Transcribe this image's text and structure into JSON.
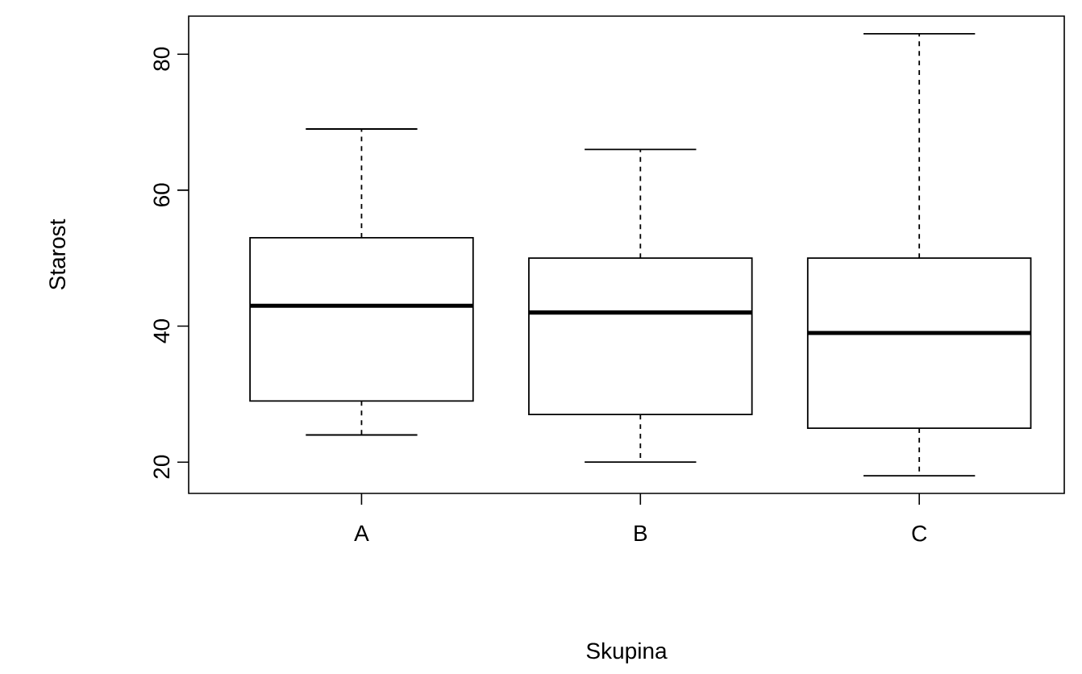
{
  "chart_data": {
    "type": "box",
    "xlabel": "Skupina",
    "ylabel": "Starost",
    "categories": [
      "A",
      "B",
      "C"
    ],
    "boxes": [
      {
        "low": 24,
        "q1": 29,
        "median": 43,
        "q3": 53,
        "high": 69
      },
      {
        "low": 20,
        "q1": 27,
        "median": 42,
        "q3": 50,
        "high": 66
      },
      {
        "low": 18,
        "q1": 25,
        "median": 39,
        "q3": 50,
        "high": 83
      }
    ],
    "ylim": [
      15.4,
      85.6
    ],
    "yticks": [
      20,
      40,
      60,
      80
    ]
  }
}
